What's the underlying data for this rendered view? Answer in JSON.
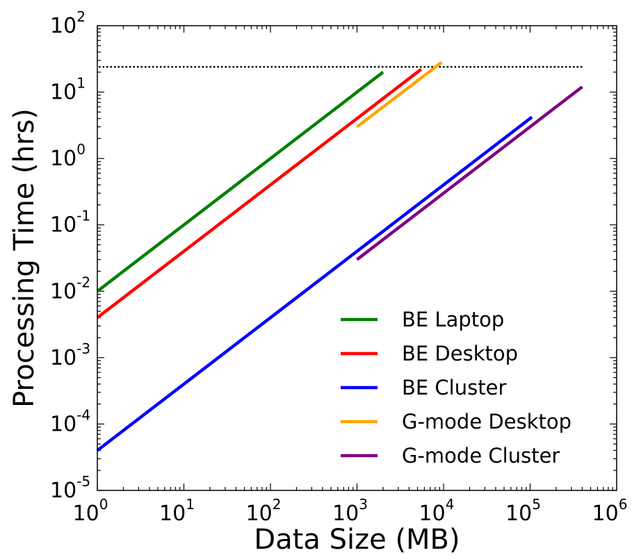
{
  "chart_data": {
    "type": "line",
    "x_scale": "log",
    "y_scale": "log",
    "xlabel": "Data Size (MB)",
    "ylabel": "Processing Time (hrs)",
    "xlim": [
      1,
      1000000
    ],
    "ylim": [
      1e-05,
      100
    ],
    "x_ticks": [
      {
        "value": 1,
        "base": "10",
        "exp": "0"
      },
      {
        "value": 10,
        "base": "10",
        "exp": "1"
      },
      {
        "value": 100,
        "base": "10",
        "exp": "2"
      },
      {
        "value": 1000,
        "base": "10",
        "exp": "3"
      },
      {
        "value": 10000,
        "base": "10",
        "exp": "4"
      },
      {
        "value": 100000,
        "base": "10",
        "exp": "5"
      },
      {
        "value": 1000000,
        "base": "10",
        "exp": "6"
      }
    ],
    "y_ticks": [
      {
        "value": 1e-05,
        "base": "10",
        "exp": "-5"
      },
      {
        "value": 0.0001,
        "base": "10",
        "exp": "-4"
      },
      {
        "value": 0.001,
        "base": "10",
        "exp": "-3"
      },
      {
        "value": 0.01,
        "base": "10",
        "exp": "-2"
      },
      {
        "value": 0.1,
        "base": "10",
        "exp": "-1"
      },
      {
        "value": 1,
        "base": "10",
        "exp": "0"
      },
      {
        "value": 10,
        "base": "10",
        "exp": "1"
      },
      {
        "value": 100,
        "base": "10",
        "exp": "2"
      }
    ],
    "legend_position": "lower-right",
    "reference_line": {
      "y": 24,
      "x": [
        1,
        400000
      ],
      "color": "#000000",
      "style": "dotted"
    },
    "series": [
      {
        "name": "BE Laptop",
        "color": "#008000",
        "x": [
          1,
          2000
        ],
        "y": [
          0.01,
          20
        ]
      },
      {
        "name": "BE Desktop",
        "color": "#ff0000",
        "x": [
          1,
          5500
        ],
        "y": [
          0.004,
          22
        ]
      },
      {
        "name": "BE Cluster",
        "color": "#0000ff",
        "x": [
          1,
          105000
        ],
        "y": [
          4e-05,
          4.2
        ]
      },
      {
        "name": "G-mode Desktop",
        "color": "#ffa500",
        "x": [
          1000,
          9500
        ],
        "y": [
          3,
          28
        ]
      },
      {
        "name": "G-mode Cluster",
        "color": "#800080",
        "x": [
          1000,
          400000
        ],
        "y": [
          0.03,
          12
        ]
      }
    ]
  }
}
